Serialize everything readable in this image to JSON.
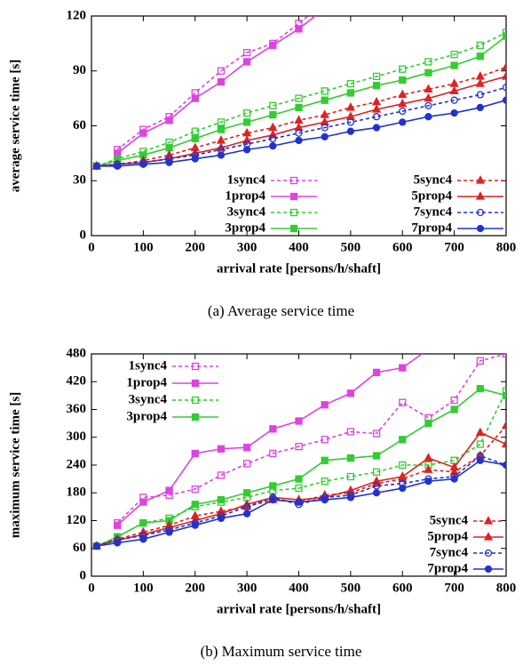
{
  "chart_data": [
    {
      "type": "line",
      "ylabel": "average service time [s]",
      "xlabel": "arrival rate [persons/h/shaft]",
      "caption": "(a) Average service time",
      "x": [
        10,
        50,
        100,
        150,
        200,
        250,
        300,
        350,
        400,
        450,
        500,
        550,
        600,
        650,
        700,
        750,
        800
      ],
      "xlim": [
        0,
        800
      ],
      "xticks": [
        0,
        100,
        200,
        300,
        400,
        500,
        600,
        700,
        800
      ],
      "ylim": [
        0,
        120
      ],
      "yticks": [
        0,
        30,
        60,
        90,
        120
      ],
      "legend": "lower right",
      "series": [
        {
          "name": "1sync4",
          "color": "#dd44dd",
          "dash": true,
          "marker": "square-open",
          "values": [
            null,
            47,
            58,
            65,
            78,
            90,
            100,
            105,
            116,
            127,
            null,
            null,
            null,
            null,
            null,
            null,
            null
          ]
        },
        {
          "name": "1prop4",
          "color": "#dd44dd",
          "dash": false,
          "marker": "square",
          "values": [
            null,
            45,
            56,
            63,
            75,
            84,
            95,
            104,
            113,
            124,
            null,
            null,
            null,
            null,
            null,
            null,
            null
          ]
        },
        {
          "name": "3sync4",
          "color": "#33cc33",
          "dash": true,
          "marker": "square-open",
          "values": [
            38,
            42,
            46,
            51,
            57,
            62,
            67,
            71,
            75,
            79,
            83,
            87,
            91,
            95,
            99,
            104,
            111
          ]
        },
        {
          "name": "3prop4",
          "color": "#33cc33",
          "dash": false,
          "marker": "square",
          "values": [
            38,
            41,
            44,
            48,
            53,
            58,
            62,
            66,
            70,
            74,
            78,
            82,
            85,
            89,
            93,
            98,
            109
          ]
        },
        {
          "name": "5sync4",
          "color": "#dd2222",
          "dash": true,
          "marker": "triangle",
          "values": [
            38,
            39,
            41,
            44,
            48,
            52,
            56,
            59,
            63,
            66,
            70,
            73,
            77,
            80,
            83,
            87,
            92
          ]
        },
        {
          "name": "5prop4",
          "color": "#dd2222",
          "dash": false,
          "marker": "triangle",
          "values": [
            38,
            39,
            40,
            42,
            45,
            48,
            52,
            55,
            59,
            62,
            65,
            69,
            72,
            75,
            79,
            83,
            87
          ]
        },
        {
          "name": "7sync4",
          "color": "#2233cc",
          "dash": true,
          "marker": "circle-open",
          "values": [
            38,
            39,
            40,
            42,
            44,
            47,
            50,
            53,
            56,
            59,
            62,
            65,
            68,
            71,
            74,
            77,
            81
          ]
        },
        {
          "name": "7prop4",
          "color": "#2233cc",
          "dash": false,
          "marker": "circle",
          "values": [
            38,
            38,
            39,
            40,
            42,
            44,
            47,
            49,
            52,
            54,
            57,
            59,
            62,
            65,
            67,
            70,
            74
          ]
        }
      ]
    },
    {
      "type": "line",
      "ylabel": "maximum service time [s]",
      "xlabel": "arrival rate [persons/h/shaft]",
      "caption": "(b) Maximum service time",
      "x": [
        10,
        50,
        100,
        150,
        200,
        250,
        300,
        350,
        400,
        450,
        500,
        550,
        600,
        650,
        700,
        750,
        800
      ],
      "xlim": [
        0,
        800
      ],
      "xticks": [
        0,
        100,
        200,
        300,
        400,
        500,
        600,
        700,
        800
      ],
      "ylim": [
        0,
        480
      ],
      "yticks": [
        0,
        60,
        120,
        180,
        240,
        300,
        360,
        420,
        480
      ],
      "series": [
        {
          "name": "1sync4",
          "color": "#dd44dd",
          "dash": true,
          "marker": "square-open",
          "legend": "upper left",
          "values": [
            null,
            115,
            170,
            175,
            188,
            218,
            243,
            265,
            280,
            295,
            312,
            308,
            375,
            342,
            380,
            465,
            480
          ]
        },
        {
          "name": "1prop4",
          "color": "#dd44dd",
          "dash": false,
          "marker": "square",
          "legend": "upper left",
          "values": [
            null,
            110,
            160,
            185,
            265,
            275,
            278,
            318,
            335,
            370,
            395,
            440,
            450,
            490,
            null,
            null,
            null
          ]
        },
        {
          "name": "3sync4",
          "color": "#33cc33",
          "dash": true,
          "marker": "square-open",
          "legend": "upper left",
          "values": [
            65,
            85,
            115,
            125,
            150,
            160,
            170,
            185,
            190,
            205,
            215,
            225,
            240,
            240,
            250,
            285,
            400
          ]
        },
        {
          "name": "3prop4",
          "color": "#33cc33",
          "dash": false,
          "marker": "square",
          "legend": "upper left",
          "values": [
            65,
            85,
            115,
            120,
            155,
            165,
            180,
            195,
            210,
            250,
            255,
            260,
            295,
            330,
            360,
            405,
            390
          ]
        },
        {
          "name": "5sync4",
          "color": "#dd2222",
          "dash": true,
          "marker": "triangle",
          "legend": "lower right",
          "values": [
            65,
            80,
            95,
            110,
            130,
            140,
            150,
            165,
            160,
            175,
            180,
            200,
            210,
            230,
            225,
            260,
            325
          ]
        },
        {
          "name": "5prop4",
          "color": "#dd2222",
          "dash": false,
          "marker": "triangle",
          "legend": "lower right",
          "values": [
            65,
            78,
            90,
            105,
            120,
            135,
            155,
            170,
            165,
            170,
            185,
            205,
            215,
            255,
            235,
            310,
            285
          ]
        },
        {
          "name": "7sync4",
          "color": "#2233cc",
          "dash": true,
          "marker": "circle-open",
          "legend": "lower right",
          "values": [
            65,
            78,
            88,
            100,
            115,
            130,
            150,
            170,
            155,
            170,
            175,
            195,
            200,
            210,
            215,
            260,
            240
          ]
        },
        {
          "name": "7prop4",
          "color": "#2233cc",
          "dash": false,
          "marker": "circle",
          "legend": "lower right",
          "values": [
            65,
            72,
            80,
            95,
            110,
            125,
            135,
            165,
            160,
            165,
            170,
            180,
            190,
            205,
            210,
            250,
            240
          ]
        }
      ]
    }
  ]
}
